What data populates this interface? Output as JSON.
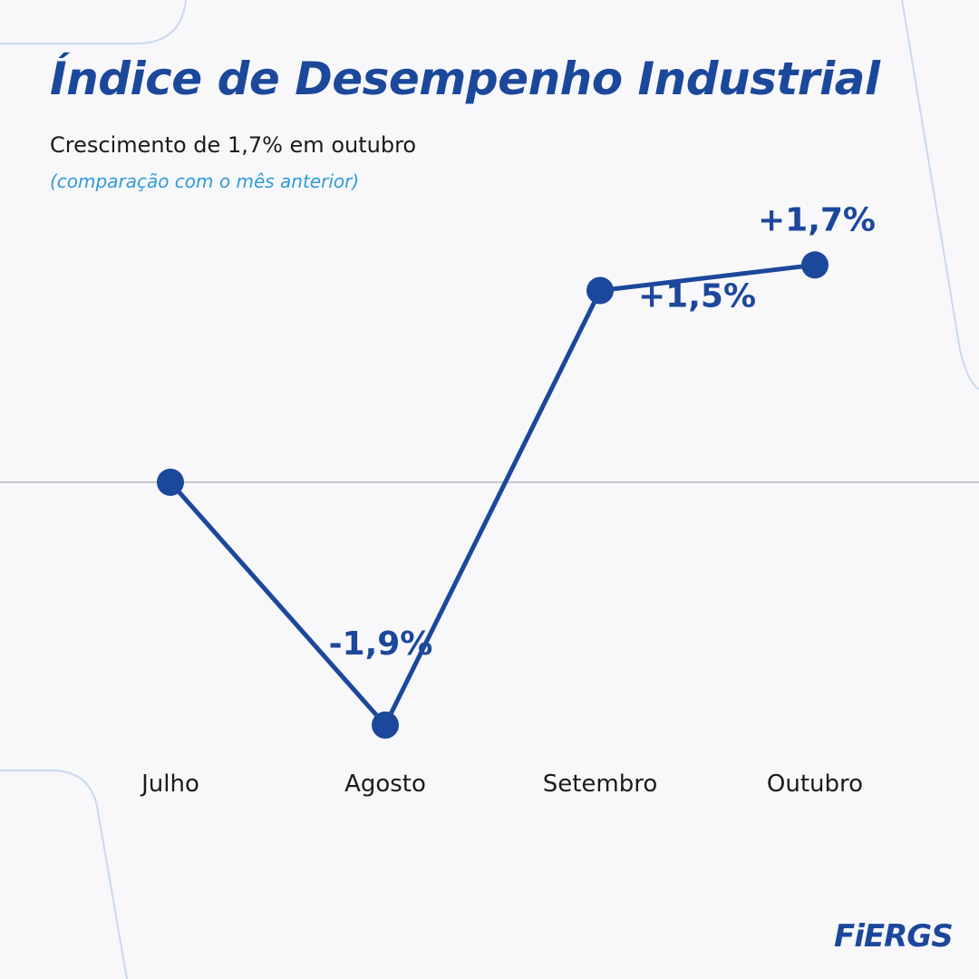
{
  "header": {
    "title": "Índice de Desempenho Industrial",
    "subtitle": "Crescimento de 1,7% em outubro",
    "note": "(comparação com o mês anterior)"
  },
  "brand": {
    "logo_text": "FiERGS"
  },
  "colors": {
    "background": "#f8f8fb",
    "primary": "#1c489b",
    "accent": "#2f9bd6",
    "text": "#1b1b1b",
    "baseline": "#c8c8cc"
  },
  "chart_data": {
    "type": "line",
    "title": "",
    "xlabel": "",
    "ylabel": "",
    "categories": [
      "Julho",
      "Agosto",
      "Setembro",
      "Outubro"
    ],
    "series": [
      {
        "values": [
          0,
          -1.9,
          1.5,
          1.7
        ],
        "data_labels": [
          "",
          "-1,9%",
          "+1,5%",
          "+1,7%"
        ]
      }
    ],
    "baseline": 0,
    "grid": false,
    "legend": "none"
  }
}
